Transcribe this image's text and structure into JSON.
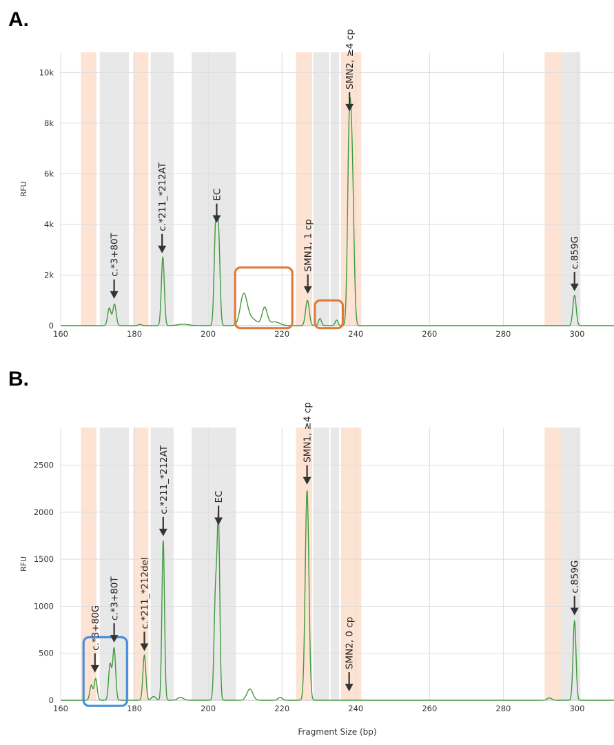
{
  "chart_data": [
    {
      "type": "line",
      "panel_label": "A.",
      "ylabel": "RFU",
      "xlabel": "",
      "xlim": [
        160,
        310
      ],
      "ylim": [
        0,
        10800
      ],
      "x_ticks": [
        160,
        180,
        200,
        220,
        240,
        260,
        280,
        300
      ],
      "y_ticks": [
        0,
        2000,
        4000,
        6000,
        8000,
        10000
      ],
      "y_tick_labels": [
        "0",
        "2k",
        "4k",
        "6k",
        "8k",
        "10k"
      ],
      "grid": true,
      "series_color": "#3d9a3d",
      "bands": [
        {
          "from": 165.5,
          "to": 169.7,
          "color": "orange"
        },
        {
          "from": 170.6,
          "to": 178.5,
          "color": "gray"
        },
        {
          "from": 179.7,
          "to": 183.8,
          "color": "orange"
        },
        {
          "from": 184.4,
          "to": 190.6,
          "color": "gray"
        },
        {
          "from": 195.5,
          "to": 207.5,
          "color": "gray"
        },
        {
          "from": 223.8,
          "to": 228.2,
          "color": "orange"
        },
        {
          "from": 228.5,
          "to": 232.8,
          "color": "gray"
        },
        {
          "from": 233.2,
          "to": 235.5,
          "color": "gray"
        },
        {
          "from": 236.0,
          "to": 241.5,
          "color": "orange"
        },
        {
          "from": 291.2,
          "to": 295.6,
          "color": "orange"
        },
        {
          "from": 295.6,
          "to": 300.9,
          "color": "gray"
        }
      ],
      "peaks": [
        {
          "x": 173.2,
          "h": 700,
          "w": 0.45
        },
        {
          "x": 174.6,
          "h": 850,
          "w": 0.45
        },
        {
          "x": 181.5,
          "h": 50,
          "w": 0.5
        },
        {
          "x": 187.7,
          "h": 2700,
          "w": 0.4
        },
        {
          "x": 193.2,
          "h": 60,
          "w": 1.5
        },
        {
          "x": 202.0,
          "h": 3700,
          "w": 0.4
        },
        {
          "x": 202.8,
          "h": 3500,
          "w": 0.4
        },
        {
          "x": 209.6,
          "h": 1150,
          "w": 0.9
        },
        {
          "x": 211.5,
          "h": 300,
          "w": 1.5
        },
        {
          "x": 215.3,
          "h": 700,
          "w": 0.7
        },
        {
          "x": 218.0,
          "h": 150,
          "w": 1.4
        },
        {
          "x": 226.9,
          "h": 1000,
          "w": 0.5
        },
        {
          "x": 230.3,
          "h": 280,
          "w": 0.4
        },
        {
          "x": 234.8,
          "h": 220,
          "w": 0.4
        },
        {
          "x": 238.2,
          "h": 6700,
          "w": 0.45
        },
        {
          "x": 239.0,
          "h": 6000,
          "w": 0.5
        },
        {
          "x": 299.3,
          "h": 1200,
          "w": 0.45
        }
      ],
      "annotations": [
        {
          "text": "c.*3+80T",
          "x": 174.5,
          "y": 900
        },
        {
          "text": "c.*211_*212AT",
          "x": 187.5,
          "y": 2700
        },
        {
          "text": "EC",
          "x": 202.3,
          "y": 3900
        },
        {
          "text": "SMN1, 1 cp",
          "x": 227.0,
          "y": 1100
        },
        {
          "text": "SMN2, ≥4 cp",
          "x": 238.3,
          "y": 8300
        },
        {
          "text": "c.859G",
          "x": 299.3,
          "y": 1200
        }
      ],
      "highlight_boxes": [
        {
          "color": "#e07b39",
          "x0": 207.3,
          "x1": 222.8,
          "y0": -100,
          "y1": 2300
        },
        {
          "color": "#e07b39",
          "x0": 228.9,
          "x1": 236.5,
          "y0": -100,
          "y1": 1000
        }
      ]
    },
    {
      "type": "line",
      "panel_label": "B.",
      "ylabel": "RFU",
      "xlabel": "Fragment Size (bp)",
      "xlim": [
        160,
        310
      ],
      "ylim": [
        0,
        2900
      ],
      "x_ticks": [
        160,
        180,
        200,
        220,
        240,
        260,
        280,
        300
      ],
      "y_ticks": [
        0,
        500,
        1000,
        1500,
        2000,
        2500
      ],
      "y_tick_labels": [
        "0",
        "500",
        "1000",
        "1500",
        "2000",
        "2500"
      ],
      "grid": true,
      "series_color": "#3d9a3d",
      "bands": [
        {
          "from": 165.5,
          "to": 169.7,
          "color": "orange"
        },
        {
          "from": 170.6,
          "to": 178.5,
          "color": "gray"
        },
        {
          "from": 179.7,
          "to": 183.8,
          "color": "orange"
        },
        {
          "from": 184.4,
          "to": 190.6,
          "color": "gray"
        },
        {
          "from": 195.5,
          "to": 207.5,
          "color": "gray"
        },
        {
          "from": 223.8,
          "to": 228.2,
          "color": "orange"
        },
        {
          "from": 228.5,
          "to": 232.8,
          "color": "gray"
        },
        {
          "from": 233.2,
          "to": 235.5,
          "color": "gray"
        },
        {
          "from": 236.0,
          "to": 241.5,
          "color": "orange"
        },
        {
          "from": 291.2,
          "to": 295.6,
          "color": "orange"
        },
        {
          "from": 295.6,
          "to": 300.9,
          "color": "gray"
        }
      ],
      "peaks": [
        {
          "x": 168.3,
          "h": 160,
          "w": 0.4
        },
        {
          "x": 169.5,
          "h": 230,
          "w": 0.4
        },
        {
          "x": 173.4,
          "h": 380,
          "w": 0.4
        },
        {
          "x": 174.5,
          "h": 550,
          "w": 0.4
        },
        {
          "x": 182.7,
          "h": 480,
          "w": 0.4
        },
        {
          "x": 185.2,
          "h": 40,
          "w": 0.6
        },
        {
          "x": 187.8,
          "h": 1700,
          "w": 0.35
        },
        {
          "x": 192.5,
          "h": 30,
          "w": 0.8
        },
        {
          "x": 202.0,
          "h": 1150,
          "w": 0.4
        },
        {
          "x": 202.8,
          "h": 1820,
          "w": 0.35
        },
        {
          "x": 211.3,
          "h": 120,
          "w": 0.8
        },
        {
          "x": 219.5,
          "h": 30,
          "w": 0.6
        },
        {
          "x": 226.8,
          "h": 2230,
          "w": 0.5
        },
        {
          "x": 292.5,
          "h": 25,
          "w": 0.6
        },
        {
          "x": 299.3,
          "h": 840,
          "w": 0.4
        }
      ],
      "annotations": [
        {
          "text": "c.*3+80G",
          "x": 169.3,
          "y": 250
        },
        {
          "text": "c.*3+80T",
          "x": 174.5,
          "y": 570
        },
        {
          "text": "c.*211_*212del",
          "x": 182.7,
          "y": 480
        },
        {
          "text": "c.*211_*212AT",
          "x": 187.8,
          "y": 1700
        },
        {
          "text": "EC",
          "x": 202.8,
          "y": 1820
        },
        {
          "text": "SMN1, ≥4 cp",
          "x": 226.8,
          "y": 2250
        },
        {
          "text": "SMN2, 0 cp",
          "x": 238.2,
          "y": 50
        },
        {
          "text": "c.859G",
          "x": 299.3,
          "y": 860
        }
      ],
      "highlight_boxes": [
        {
          "color": "#4a90d9",
          "x0": 166.2,
          "x1": 178.0,
          "y0": -60,
          "y1": 670
        }
      ]
    }
  ]
}
